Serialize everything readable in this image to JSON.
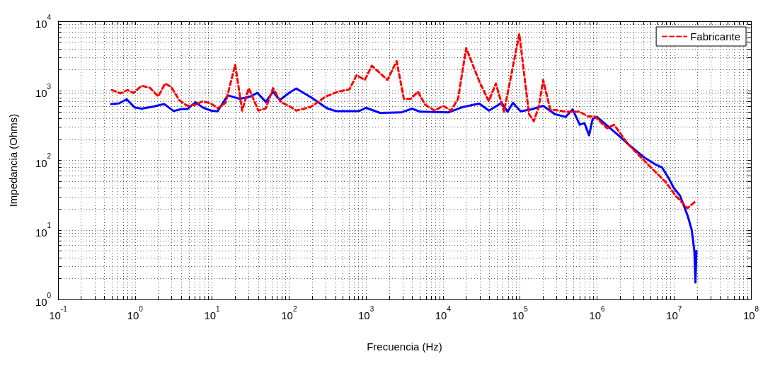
{
  "chart_data": {
    "type": "line",
    "xlabel": "Frecuencia (Hz)",
    "ylabel": "Impedancia (Ohms)",
    "log": "xy",
    "grid": true,
    "legend": "top right",
    "marker": "none",
    "xlim": [
      0.1,
      100000000
    ],
    "ylim": [
      1,
      10000
    ],
    "xticks": [
      {
        "value": 0.1,
        "label": "10$^{-1}$"
      },
      {
        "value": 1,
        "label": "10$^{0}$"
      },
      {
        "value": 10,
        "label": "10$^{1}$"
      },
      {
        "value": 100,
        "label": "10$^{2}$"
      },
      {
        "value": 1000,
        "label": "10$^{3}$"
      },
      {
        "value": 10000,
        "label": "10$^{4}$"
      },
      {
        "value": 100000,
        "label": "10$^{5}$"
      },
      {
        "value": 1000000,
        "label": "10$^{6}$"
      },
      {
        "value": 10000000,
        "label": "10$^{7}$"
      },
      {
        "value": 100000000,
        "label": "10$^{8}$"
      }
    ],
    "yticks": [
      {
        "value": 1,
        "label": "10$^{0}$"
      },
      {
        "value": 10,
        "label": "10$^{1}$"
      },
      {
        "value": 100,
        "label": "10$^{2}$"
      },
      {
        "value": 1000,
        "label": "10$^{3}$"
      },
      {
        "value": 10000,
        "label": "10$^{4}$"
      }
    ],
    "series": [
      {
        "name": "Fabricante",
        "color": "#ff0000",
        "line_style": "dashed",
        "x": [
          0.5,
          0.65,
          0.8,
          0.95,
          1.22,
          1.56,
          2.0,
          2.46,
          2.95,
          3.78,
          4.8,
          6.1,
          7.6,
          9.7,
          11.8,
          15,
          20,
          24.6,
          30,
          40,
          50,
          62,
          79,
          100,
          124,
          190,
          302,
          430,
          610,
          754,
          964,
          1190,
          1900,
          2500,
          3100,
          3800,
          4730,
          5860,
          7800,
          10000,
          12700,
          15700,
          20000,
          29500,
          39300,
          48600,
          62000,
          98000,
          131000,
          151000,
          175000,
          200000,
          247000,
          405000,
          597000,
          764000,
          944000,
          1350000,
          1670000,
          2500000,
          4800000,
          7900000,
          10500000,
          15000000,
          19000000
        ],
        "values": [
          1025,
          918,
          1025,
          932,
          1180,
          1107,
          830,
          1273,
          1133,
          727,
          607,
          631,
          709,
          656,
          561,
          671,
          2375,
          519,
          1090,
          519,
          561,
          1090,
          682,
          607,
          519,
          583,
          830,
          969,
          1047,
          1675,
          1433,
          2290,
          1433,
          2670,
          767,
          767,
          969,
          631,
          519,
          607,
          519,
          767,
          4110,
          1380,
          709,
          1273,
          500,
          6560,
          461,
          366,
          583,
          1430,
          540,
          500,
          500,
          427,
          427,
          289,
          325,
          174,
          83,
          48,
          31,
          20.5,
          25.7
        ]
      },
      {
        "color": "#0000ff",
        "line_style": "solid",
        "x": [
          0.49,
          0.62,
          0.78,
          0.99,
          1.22,
          1.74,
          2.39,
          3.17,
          4.06,
          4.8,
          6.1,
          7.6,
          9.7,
          11.8,
          16,
          22.8,
          30,
          38.8,
          50,
          61.8,
          76,
          100,
          124,
          195,
          310,
          400,
          815,
          1000,
          1520,
          2870,
          3960,
          5040,
          11700,
          18100,
          29600,
          39500,
          58000,
          69000,
          81000,
          102000,
          140000,
          200000,
          284000,
          390000,
          483000,
          597000,
          687000,
          790000,
          880000,
          1000000,
          1900000,
          2500000,
          4150000,
          5900000,
          7000000,
          8500000,
          10000000,
          12000000,
          15000000,
          17000000,
          18400000,
          19000000,
          19600000
        ],
        "values": [
          645,
          660,
          755,
          575,
          553,
          593,
          646,
          511,
          548,
          548,
          682,
          575,
          519,
          507,
          862,
          767,
          810,
          933,
          693,
          970,
          738,
          933,
          1080,
          800,
          563,
          511,
          511,
          570,
          481,
          488,
          553,
          500,
          488,
          584,
          656,
          519,
          672,
          500,
          672,
          507,
          540,
          608,
          462,
          421,
          540,
          325,
          343,
          229,
          396,
          421,
          229,
          174,
          109,
          86,
          79,
          56,
          39.6,
          31,
          16.2,
          10,
          5.0,
          1.75,
          5.0
        ]
      }
    ]
  }
}
